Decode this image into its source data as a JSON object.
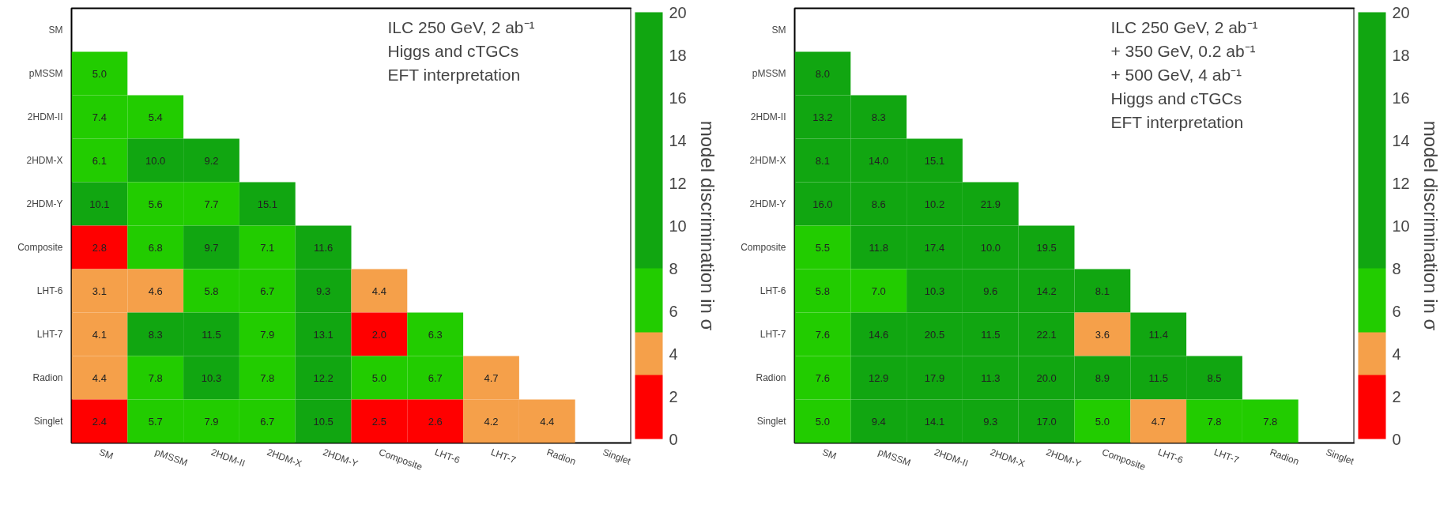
{
  "chart_data": [
    {
      "type": "heatmap",
      "categories": [
        "SM",
        "pMSSM",
        "2HDM-II",
        "2HDM-X",
        "2HDM-Y",
        "Composite",
        "LHT-6",
        "LHT-7",
        "Radion",
        "Singlet"
      ],
      "y_categories": [
        "SM",
        "pMSSM",
        "2HDM-II",
        "2HDM-X",
        "2HDM-Y",
        "Composite",
        "LHT-6",
        "LHT-7",
        "Radion",
        "Singlet"
      ],
      "cells": [
        [
          null,
          null,
          null,
          null,
          null,
          null,
          null,
          null,
          null,
          null
        ],
        [
          5.0,
          null,
          null,
          null,
          null,
          null,
          null,
          null,
          null,
          null
        ],
        [
          7.4,
          5.4,
          null,
          null,
          null,
          null,
          null,
          null,
          null,
          null
        ],
        [
          6.1,
          10.0,
          9.2,
          null,
          null,
          null,
          null,
          null,
          null,
          null
        ],
        [
          10.1,
          5.6,
          7.7,
          15.1,
          null,
          null,
          null,
          null,
          null,
          null
        ],
        [
          2.8,
          6.8,
          9.7,
          7.1,
          11.6,
          null,
          null,
          null,
          null,
          null
        ],
        [
          3.1,
          4.6,
          5.8,
          6.7,
          9.3,
          4.4,
          null,
          null,
          null,
          null
        ],
        [
          4.1,
          8.3,
          11.5,
          7.9,
          13.1,
          2.0,
          6.3,
          null,
          null,
          null
        ],
        [
          4.4,
          7.8,
          10.3,
          7.8,
          12.2,
          5.0,
          6.7,
          4.7,
          null,
          null
        ],
        [
          2.4,
          5.7,
          7.9,
          6.7,
          10.5,
          2.5,
          2.6,
          4.2,
          4.4,
          null
        ]
      ],
      "cell_labels": [
        [
          null,
          null,
          null,
          null,
          null,
          null,
          null,
          null,
          null,
          null
        ],
        [
          "5.0",
          null,
          null,
          null,
          null,
          null,
          null,
          null,
          null,
          null
        ],
        [
          "7.4",
          "5.4",
          null,
          null,
          null,
          null,
          null,
          null,
          null,
          null
        ],
        [
          "6.1",
          "10.0",
          "9.2",
          null,
          null,
          null,
          null,
          null,
          null,
          null
        ],
        [
          "10.1",
          "5.6",
          "7.7",
          "15.1",
          null,
          null,
          null,
          null,
          null,
          null
        ],
        [
          "2.8",
          "6.8",
          "9.7",
          "7.1",
          "11.6",
          null,
          null,
          null,
          null,
          null
        ],
        [
          "3.1",
          "4.6",
          "5.8",
          "6.7",
          "9.3",
          "4.4",
          null,
          null,
          null,
          null
        ],
        [
          "4.1",
          "8.3",
          "11.5",
          "7.9",
          "13.1",
          "2.0",
          "6.3",
          null,
          null,
          null
        ],
        [
          "4.4",
          "7.8",
          "10.3",
          "7.8",
          "12.2",
          "5.0",
          "6.7",
          "4.7",
          null,
          null
        ],
        [
          "2.4",
          "5.7",
          "7.9",
          "6.7",
          "10.5",
          "2.5",
          "2.6",
          "4.2",
          "4.4",
          null
        ]
      ],
      "clabel": "model discrimination in σ",
      "clim": [
        0,
        20
      ],
      "cticks": [
        0,
        2,
        4,
        6,
        8,
        10,
        12,
        14,
        16,
        18,
        20
      ],
      "colors": [
        "#ff0000",
        "#ff0000",
        "#ff0000",
        "#f5a04a",
        "#f5a04a",
        "#22cc00",
        "#22cc00",
        "#22cc00",
        "#11a611",
        "#11a611",
        "#11a611",
        "#11a611",
        "#11a611",
        "#11a611",
        "#11a611",
        "#11a611",
        "#11a611",
        "#11a611",
        "#11a611",
        "#11a611"
      ],
      "annotations": [
        "ILC 250 GeV, 2 ab⁻¹",
        "Higgs and cTGCs",
        "EFT interpretation"
      ]
    },
    {
      "type": "heatmap",
      "categories": [
        "SM",
        "pMSSM",
        "2HDM-II",
        "2HDM-X",
        "2HDM-Y",
        "Composite",
        "LHT-6",
        "LHT-7",
        "Radion",
        "Singlet"
      ],
      "y_categories": [
        "SM",
        "pMSSM",
        "2HDM-II",
        "2HDM-X",
        "2HDM-Y",
        "Composite",
        "LHT-6",
        "LHT-7",
        "Radion",
        "Singlet"
      ],
      "cells": [
        [
          null,
          null,
          null,
          null,
          null,
          null,
          null,
          null,
          null,
          null
        ],
        [
          8.0,
          null,
          null,
          null,
          null,
          null,
          null,
          null,
          null,
          null
        ],
        [
          13.2,
          8.3,
          null,
          null,
          null,
          null,
          null,
          null,
          null,
          null
        ],
        [
          8.1,
          14.0,
          15.1,
          null,
          null,
          null,
          null,
          null,
          null,
          null
        ],
        [
          16.0,
          8.6,
          10.2,
          21.9,
          null,
          null,
          null,
          null,
          null,
          null
        ],
        [
          5.5,
          11.8,
          17.4,
          10.0,
          19.5,
          null,
          null,
          null,
          null,
          null
        ],
        [
          5.8,
          7.0,
          10.3,
          9.6,
          14.2,
          8.1,
          null,
          null,
          null,
          null
        ],
        [
          7.6,
          14.6,
          20.5,
          11.5,
          22.1,
          3.6,
          11.4,
          null,
          null,
          null
        ],
        [
          7.6,
          12.9,
          17.9,
          11.3,
          20.0,
          8.9,
          11.5,
          8.5,
          null,
          null
        ],
        [
          5.0,
          9.4,
          14.1,
          9.3,
          17.0,
          5.0,
          4.7,
          7.8,
          7.8,
          null
        ]
      ],
      "cell_labels": [
        [
          null,
          null,
          null,
          null,
          null,
          null,
          null,
          null,
          null,
          null
        ],
        [
          "8.0",
          null,
          null,
          null,
          null,
          null,
          null,
          null,
          null,
          null
        ],
        [
          "13.2",
          "8.3",
          null,
          null,
          null,
          null,
          null,
          null,
          null,
          null
        ],
        [
          "8.1",
          "14.0",
          "15.1",
          null,
          null,
          null,
          null,
          null,
          null,
          null
        ],
        [
          "16.0",
          "8.6",
          "10.2",
          "21.9",
          null,
          null,
          null,
          null,
          null,
          null
        ],
        [
          "5.5",
          "11.8",
          "17.4",
          "10.0",
          "19.5",
          null,
          null,
          null,
          null,
          null
        ],
        [
          "5.8",
          "7.0",
          "10.3",
          "9.6",
          "14.2",
          "8.1",
          null,
          null,
          null,
          null
        ],
        [
          "7.6",
          "14.6",
          "20.5",
          "11.5",
          "22.1",
          "3.6",
          "11.4",
          null,
          null,
          null
        ],
        [
          "7.6",
          "12.9",
          "17.9",
          "11.3",
          "20.0",
          "8.9",
          "11.5",
          "8.5",
          null,
          null
        ],
        [
          "5.0",
          "9.4",
          "14.1",
          "9.3",
          "17.0",
          "5.0",
          "4.7",
          "7.8",
          "7.8",
          null
        ]
      ],
      "clabel": "model discrimination in σ",
      "clim": [
        0,
        20
      ],
      "cticks": [
        0,
        2,
        4,
        6,
        8,
        10,
        12,
        14,
        16,
        18,
        20
      ],
      "colors": [
        "#ff0000",
        "#ff0000",
        "#ff0000",
        "#f5a04a",
        "#f5a04a",
        "#22cc00",
        "#22cc00",
        "#22cc00",
        "#11a611",
        "#11a611",
        "#11a611",
        "#11a611",
        "#11a611",
        "#11a611",
        "#11a611",
        "#11a611",
        "#11a611",
        "#11a611",
        "#11a611",
        "#11a611"
      ],
      "annotations": [
        "ILC 250 GeV, 2 ab⁻¹",
        "+ 350 GeV, 0.2 ab⁻¹",
        "+ 500 GeV,   4 ab⁻¹",
        "Higgs and cTGCs",
        "EFT interpretation"
      ]
    }
  ]
}
